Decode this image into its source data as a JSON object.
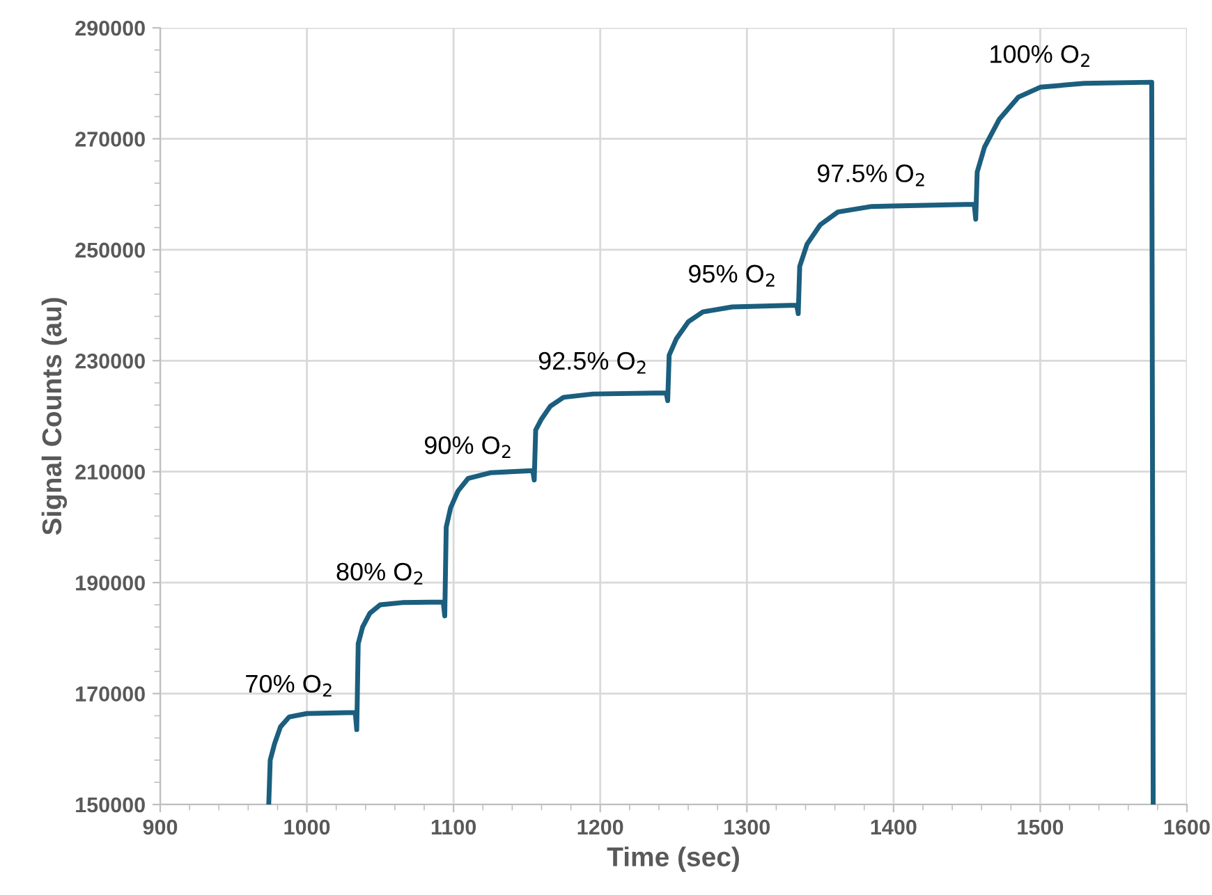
{
  "chart_data": {
    "type": "line",
    "xlabel": "Time (sec)",
    "ylabel": "Signal Counts (au)",
    "xlim": [
      900,
      1600
    ],
    "xticks": [
      900,
      1000,
      1100,
      1200,
      1300,
      1400,
      1500,
      1600
    ],
    "ylim": [
      150000,
      290000
    ],
    "yticks": [
      150000,
      170000,
      190000,
      210000,
      230000,
      250000,
      270000,
      290000
    ],
    "grid": true,
    "marker": "none",
    "line_style": "solid",
    "series": [
      {
        "color": "#1b5e7e",
        "x": [
          974,
          975,
          978,
          982,
          988,
          1000,
          1033,
          1034,
          1035,
          1038,
          1043,
          1050,
          1065,
          1093,
          1094,
          1095,
          1098,
          1103,
          1110,
          1125,
          1154,
          1155,
          1156,
          1160,
          1166,
          1175,
          1195,
          1245,
          1246,
          1247,
          1252,
          1260,
          1270,
          1290,
          1334,
          1335,
          1336,
          1341,
          1350,
          1362,
          1385,
          1455,
          1456,
          1457,
          1462,
          1472,
          1485,
          1500,
          1530,
          1576,
          1577
        ],
        "values": [
          150000,
          158000,
          161000,
          164000,
          165800,
          166400,
          166600,
          163500,
          179000,
          182000,
          184500,
          186000,
          186400,
          186500,
          184000,
          200000,
          203500,
          206500,
          208800,
          209800,
          210200,
          208500,
          217500,
          219500,
          221800,
          223400,
          224000,
          224200,
          222800,
          231000,
          234000,
          237000,
          238800,
          239700,
          240000,
          238500,
          247000,
          251000,
          254500,
          256800,
          257800,
          258200,
          255500,
          264000,
          268500,
          273500,
          277500,
          279300,
          280000,
          280200,
          150000
        ]
      }
    ],
    "annotations": [
      {
        "text": "70% O$_{2}$",
        "x": 988,
        "y": 165800
      },
      {
        "text": "80% O$_{2}$",
        "x": 1050,
        "y": 186000
      },
      {
        "text": "90% O$_{2}$",
        "x": 1110,
        "y": 208800
      },
      {
        "text": "92.5% O$_{2}$",
        "x": 1195,
        "y": 224000
      },
      {
        "text": "95% O$_{2}$",
        "x": 1290,
        "y": 239700
      },
      {
        "text": "97.5% O$_{2}$",
        "x": 1385,
        "y": 257800
      },
      {
        "text": "100% O$_{2}$",
        "x": 1500,
        "y": 279300
      }
    ]
  }
}
